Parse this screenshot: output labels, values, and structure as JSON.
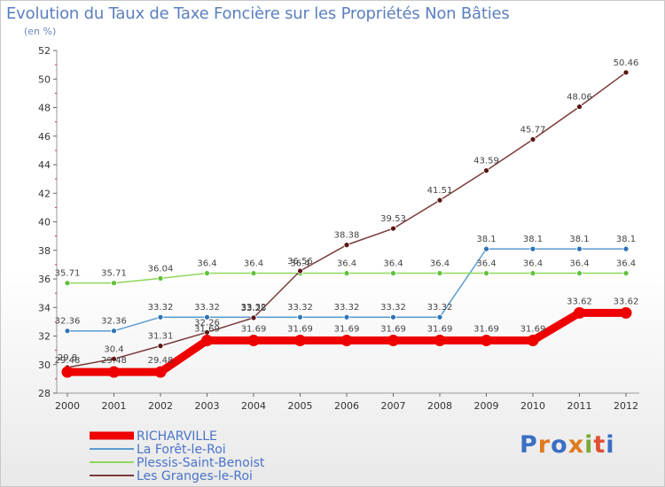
{
  "header": {
    "title": "Evolution du Taux de Taxe Foncière sur les Propriétés Non Bâties",
    "unit": "(en %)"
  },
  "logo": {
    "text": "Proxiti",
    "colors": [
      "#3b6fc4",
      "#e07a20",
      "#3b6fc4",
      "#e07a20",
      "#7aa93a",
      "#e05030",
      "#3b6fc4"
    ]
  },
  "chart_data": {
    "type": "line",
    "title": "Evolution du Taux de Taxe Foncière sur les Propriétés Non Bâties",
    "ylabel": "(en %)",
    "xlabel": "",
    "ylim": [
      28,
      52
    ],
    "yticks": [
      28,
      30,
      32,
      34,
      36,
      38,
      40,
      42,
      44,
      46,
      48,
      50,
      52
    ],
    "categories": [
      "2000",
      "2001",
      "2002",
      "2003",
      "2004",
      "2005",
      "2006",
      "2007",
      "2008",
      "2009",
      "2010",
      "2011",
      "2012"
    ],
    "grid": false,
    "legend_position": "bottom-left",
    "series": [
      {
        "name": "RICHARVILLE",
        "color": "#ee0000",
        "marker_color": "#ee0000",
        "emphasis": true,
        "values": [
          29.48,
          29.48,
          29.48,
          31.69,
          31.69,
          31.69,
          31.69,
          31.69,
          31.69,
          31.69,
          31.69,
          33.62,
          33.62
        ],
        "labels": [
          "29.48",
          "29.48",
          "29.48",
          "31.69",
          "31.69",
          "31.69",
          "31.69",
          "31.69",
          "31.69",
          "31.69",
          "31.69",
          "33.62",
          "33.62"
        ]
      },
      {
        "name": "La Forêt-le-Roi",
        "color": "#5a9ad0",
        "marker_color": "#2f74b6",
        "values": [
          32.36,
          32.36,
          33.32,
          33.32,
          33.32,
          33.32,
          33.32,
          33.32,
          33.32,
          38.1,
          38.1,
          38.1,
          38.1
        ],
        "labels": [
          "32.36",
          "32.36",
          "33.32",
          "33.32",
          "33.32",
          "33.32",
          "33.32",
          "33.32",
          "33.32",
          "38.1",
          "38.1",
          "38.1",
          "38.1"
        ]
      },
      {
        "name": "Plessis-Saint-Benoist",
        "color": "#8fd85a",
        "marker_color": "#5fc13a",
        "values": [
          35.71,
          35.71,
          36.04,
          36.4,
          36.4,
          36.4,
          36.4,
          36.4,
          36.4,
          36.4,
          36.4,
          36.4,
          36.4
        ],
        "labels": [
          "35.71",
          "35.71",
          "36.04",
          "36.4",
          "36.4",
          "36.4",
          "36.4",
          "36.4",
          "36.4",
          "36.4",
          "36.4",
          "36.4",
          "36.4"
        ]
      },
      {
        "name": "Les Granges-le-Roi",
        "color": "#7b3a3a",
        "marker_color": "#5a1414",
        "values": [
          29.8,
          30.4,
          31.31,
          32.26,
          33.28,
          36.56,
          38.38,
          39.53,
          41.51,
          43.59,
          45.77,
          48.06,
          50.46
        ],
        "labels": [
          "29.8",
          "30.4",
          "31.31",
          "32.26",
          "33.28",
          "36.56",
          "38.38",
          "39.53",
          "41.51",
          "43.59",
          "45.77",
          "48.06",
          "50.46"
        ]
      }
    ]
  }
}
